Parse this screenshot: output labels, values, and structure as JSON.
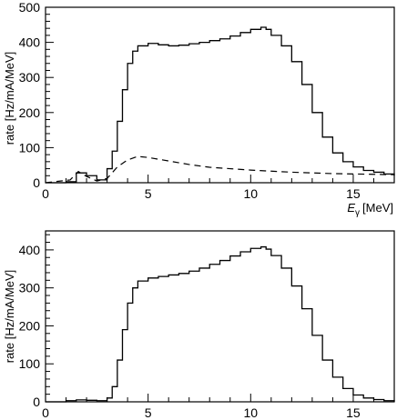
{
  "chart_data": [
    {
      "type": "line",
      "title": "",
      "xlabel_main": "E",
      "xlabel_sub": "γ",
      "xlabel_unit": "[MeV]",
      "ylabel": "rate [Hz/mA/MeV]",
      "xlim": [
        0,
        17
      ],
      "ylim": [
        0,
        500
      ],
      "xticks": [
        0,
        5,
        10,
        15
      ],
      "yticks": [
        0,
        100,
        200,
        300,
        400,
        500
      ],
      "xtick_labels": [
        "0",
        "5",
        "10",
        "15"
      ],
      "ytick_labels": [
        "0",
        "100",
        "200",
        "300",
        "400",
        "500"
      ],
      "grid": false,
      "series": [
        {
          "style": "solid-step",
          "x": [
            0,
            1,
            1.5,
            2,
            2.5,
            3,
            3.25,
            3.5,
            3.75,
            4,
            4.25,
            4.5,
            5,
            5.5,
            6,
            6.5,
            7,
            7.5,
            8,
            8.5,
            9,
            9.5,
            10,
            10.5,
            10.75,
            11,
            11.5,
            12,
            12.5,
            13,
            13.5,
            14,
            14.5,
            15,
            15.5,
            16,
            16.5,
            17
          ],
          "y": [
            0,
            3,
            28,
            20,
            8,
            40,
            90,
            175,
            265,
            340,
            375,
            390,
            397,
            393,
            390,
            392,
            396,
            400,
            405,
            410,
            418,
            428,
            437,
            443,
            437,
            420,
            390,
            345,
            280,
            200,
            130,
            85,
            60,
            45,
            35,
            30,
            25,
            20
          ]
        },
        {
          "style": "dashed",
          "x": [
            0,
            1.2,
            1.6,
            2.0,
            2.5,
            3.0,
            3.5,
            4.0,
            4.5,
            5.0,
            6.0,
            7.0,
            8.0,
            9.0,
            10.0,
            11.0,
            12.0,
            13.0,
            14.0,
            15.0,
            16.0,
            17.0
          ],
          "y": [
            0,
            8,
            32,
            18,
            5,
            12,
            45,
            65,
            75,
            72,
            62,
            52,
            44,
            40,
            36,
            33,
            30,
            28,
            26,
            25,
            24,
            23
          ]
        }
      ]
    },
    {
      "type": "line",
      "title": "",
      "xlabel_main": "",
      "xlabel_sub": "",
      "xlabel_unit": "",
      "ylabel": "rate [Hz/mA/MeV]",
      "xlim": [
        0,
        17
      ],
      "ylim": [
        0,
        450
      ],
      "xticks": [
        0,
        5,
        10,
        15
      ],
      "yticks": [
        0,
        100,
        200,
        300,
        400
      ],
      "xtick_labels": [
        "0",
        "5",
        "10",
        "15"
      ],
      "ytick_labels": [
        "0",
        "100",
        "200",
        "300",
        "400"
      ],
      "grid": false,
      "series": [
        {
          "style": "solid-step",
          "x": [
            0,
            1,
            1.5,
            2,
            2.5,
            3,
            3.25,
            3.5,
            3.75,
            4,
            4.25,
            4.5,
            5,
            5.5,
            6,
            6.5,
            7,
            7.5,
            8,
            8.5,
            9,
            9.5,
            10,
            10.5,
            10.75,
            11,
            11.5,
            12,
            12.5,
            13,
            13.5,
            14,
            14.5,
            15,
            15.5,
            16,
            16.5,
            17
          ],
          "y": [
            0,
            3,
            5,
            4,
            3,
            10,
            40,
            110,
            190,
            260,
            300,
            318,
            326,
            330,
            334,
            338,
            344,
            352,
            362,
            372,
            384,
            395,
            404,
            408,
            402,
            385,
            352,
            305,
            245,
            175,
            110,
            65,
            35,
            18,
            10,
            6,
            3,
            1
          ]
        }
      ]
    }
  ]
}
